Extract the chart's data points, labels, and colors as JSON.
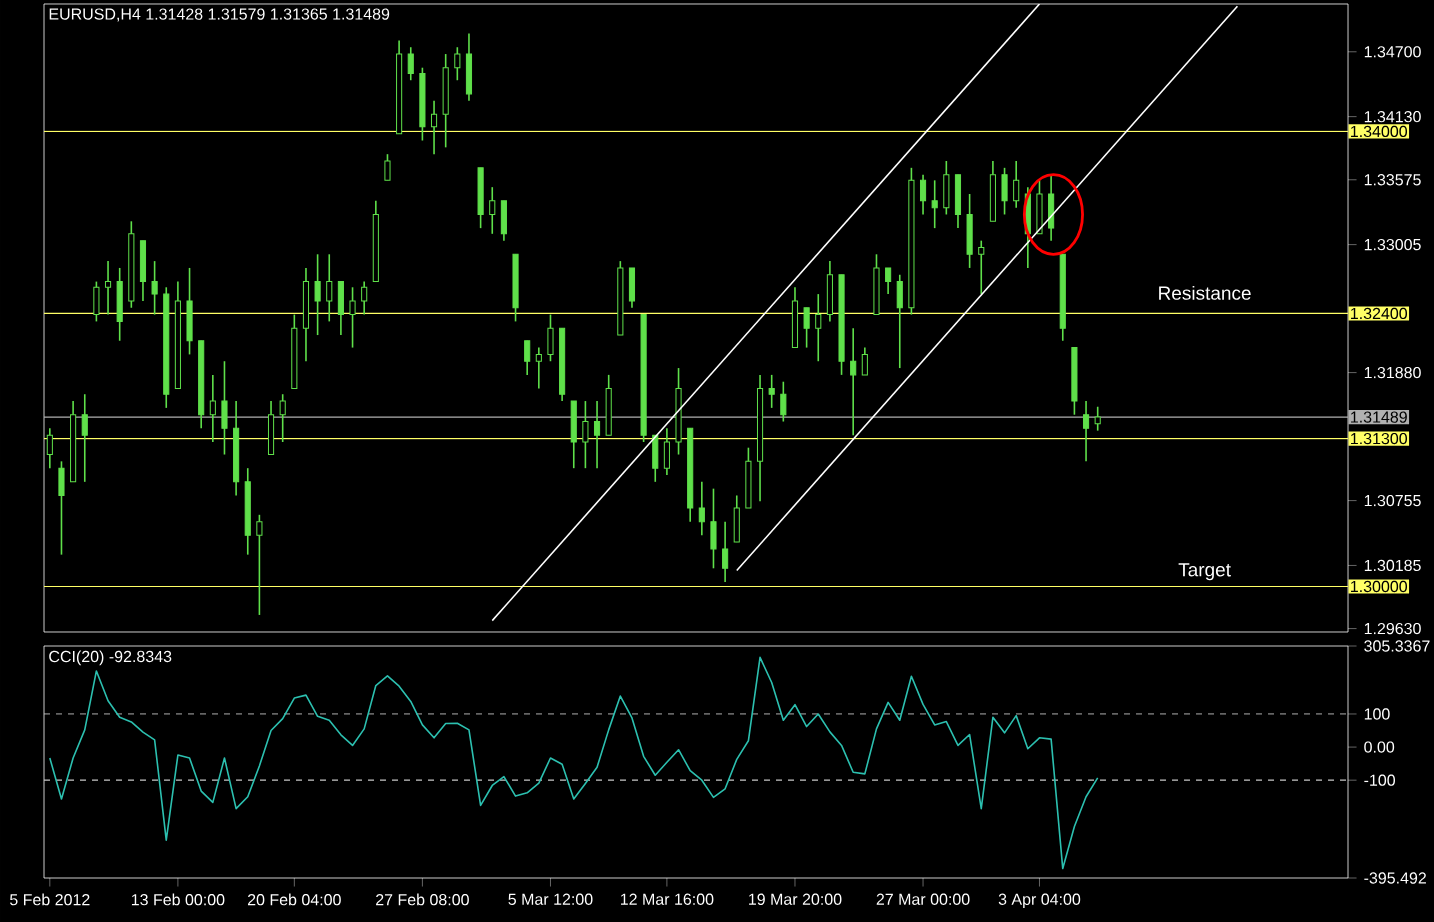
{
  "chart_data": [
    {
      "type": "candlestick",
      "title": "EURUSD,H4  1.31428 1.31579 1.31365 1.31489",
      "color": "#5fe04a",
      "categories": [
        null,
        null,
        null,
        null,
        null,
        null,
        null,
        null,
        null,
        null,
        null,
        null,
        null,
        null,
        null,
        null,
        null,
        null,
        null,
        null,
        null,
        null,
        null,
        null,
        null,
        null,
        null,
        null,
        null,
        null,
        null,
        null,
        null,
        null,
        null,
        null,
        null,
        null,
        null,
        null,
        null,
        null,
        null,
        null,
        null,
        null,
        null,
        null,
        null,
        null,
        null,
        null,
        null,
        null,
        null,
        null,
        null,
        null,
        null,
        null,
        null,
        null,
        null,
        null,
        null,
        null,
        null,
        null,
        null,
        null,
        null,
        null,
        null,
        null,
        null,
        null,
        null,
        null,
        null,
        null,
        null,
        null,
        null,
        null,
        null,
        null,
        null,
        null,
        null,
        null,
        null,
        null,
        null,
        null,
        null,
        null,
        null,
        null,
        null,
        null,
        null,
        null,
        null,
        null,
        null,
        null,
        null,
        null,
        null,
        null,
        null,
        null
      ],
      "ohlc": [
        [
          1.3116,
          1.3139,
          1.3104,
          1.3133
        ],
        [
          1.3104,
          1.311,
          1.3028,
          1.308
        ],
        [
          1.3092,
          1.3163,
          1.3092,
          1.3151
        ],
        [
          1.3151,
          1.3169,
          1.3092,
          1.3133
        ],
        [
          1.3239,
          1.3268,
          1.3233,
          1.3263
        ],
        [
          1.3263,
          1.3286,
          1.3239,
          1.3268
        ],
        [
          1.3268,
          1.328,
          1.3216,
          1.3233
        ],
        [
          1.3251,
          1.3321,
          1.3245,
          1.331
        ],
        [
          1.3304,
          1.3304,
          1.3251,
          1.3268
        ],
        [
          1.3268,
          1.3286,
          1.3239,
          1.3257
        ],
        [
          1.3257,
          1.3263,
          1.3157,
          1.3169
        ],
        [
          1.3174,
          1.3268,
          1.3174,
          1.3251
        ],
        [
          1.3251,
          1.328,
          1.3204,
          1.3216
        ],
        [
          1.3216,
          1.3216,
          1.3139,
          1.3151
        ],
        [
          1.3151,
          1.3186,
          1.3127,
          1.3163
        ],
        [
          1.3163,
          1.3198,
          1.3116,
          1.3139
        ],
        [
          1.3139,
          1.3163,
          1.308,
          1.3092
        ],
        [
          1.3092,
          1.3104,
          1.3028,
          1.3045
        ],
        [
          1.3045,
          1.3063,
          1.2975,
          1.3057
        ],
        [
          1.3116,
          1.3163,
          1.3116,
          1.3151
        ],
        [
          1.3151,
          1.3169,
          1.3127,
          1.3163
        ],
        [
          1.3174,
          1.3239,
          1.3174,
          1.3227
        ],
        [
          1.3227,
          1.328,
          1.3198,
          1.3268
        ],
        [
          1.3268,
          1.3292,
          1.3221,
          1.3251
        ],
        [
          1.3251,
          1.3292,
          1.3233,
          1.3268
        ],
        [
          1.3268,
          1.3268,
          1.3221,
          1.3239
        ],
        [
          1.3239,
          1.3263,
          1.321,
          1.3251
        ],
        [
          1.3251,
          1.3268,
          1.3239,
          1.3263
        ],
        [
          1.3268,
          1.3339,
          1.3268,
          1.3327
        ],
        [
          1.3357,
          1.338,
          1.3357,
          1.3374
        ],
        [
          1.3398,
          1.348,
          1.3398,
          1.3468
        ],
        [
          1.3468,
          1.3474,
          1.3445,
          1.3451
        ],
        [
          1.3451,
          1.3456,
          1.3392,
          1.3404
        ],
        [
          1.3404,
          1.3427,
          1.338,
          1.3415
        ],
        [
          1.3415,
          1.3468,
          1.3386,
          1.3456
        ],
        [
          1.3456,
          1.3474,
          1.3445,
          1.3468
        ],
        [
          1.3468,
          1.3486,
          1.3427,
          1.3433
        ],
        [
          1.3368,
          1.3368,
          1.3315,
          1.3327
        ],
        [
          1.3327,
          1.3351,
          1.331,
          1.3339
        ],
        [
          1.3339,
          1.3339,
          1.3304,
          1.331
        ],
        [
          1.3292,
          1.3292,
          1.3233,
          1.3245
        ],
        [
          1.3216,
          1.3216,
          1.3186,
          1.3198
        ],
        [
          1.3198,
          1.321,
          1.3174,
          1.3204
        ],
        [
          1.3204,
          1.3239,
          1.3198,
          1.3227
        ],
        [
          1.3227,
          1.3227,
          1.3163,
          1.3169
        ],
        [
          1.3163,
          1.3163,
          1.3104,
          1.3127
        ],
        [
          1.3127,
          1.3163,
          1.3104,
          1.3145
        ],
        [
          1.3145,
          1.3163,
          1.3104,
          1.3133
        ],
        [
          1.3133,
          1.3186,
          1.3133,
          1.3174
        ],
        [
          1.3221,
          1.3286,
          1.3221,
          1.328
        ],
        [
          1.328,
          1.328,
          1.3245,
          1.3251
        ],
        [
          1.3239,
          1.3239,
          1.3127,
          1.3133
        ],
        [
          1.3133,
          1.3133,
          1.3092,
          1.3104
        ],
        [
          1.3104,
          1.3139,
          1.3098,
          1.3127
        ],
        [
          1.3127,
          1.3192,
          1.3116,
          1.3174
        ],
        [
          1.3139,
          1.3139,
          1.3057,
          1.3069
        ],
        [
          1.3069,
          1.3092,
          1.3045,
          1.3057
        ],
        [
          1.3057,
          1.3086,
          1.3016,
          1.3033
        ],
        [
          1.3033,
          1.3057,
          1.3004,
          1.3016
        ],
        [
          1.3039,
          1.308,
          1.3039,
          1.3069
        ],
        [
          1.3069,
          1.3122,
          1.3069,
          1.311
        ],
        [
          1.311,
          1.3186,
          1.3075,
          1.3174
        ],
        [
          1.3174,
          1.3186,
          1.3157,
          1.3169
        ],
        [
          1.3169,
          1.318,
          1.3145,
          1.3151
        ],
        [
          1.321,
          1.3263,
          1.321,
          1.3251
        ],
        [
          1.3245,
          1.3245,
          1.321,
          1.3227
        ],
        [
          1.3227,
          1.3257,
          1.3198,
          1.3239
        ],
        [
          1.3239,
          1.3286,
          1.3233,
          1.3274
        ],
        [
          1.3274,
          1.3274,
          1.3186,
          1.3198
        ],
        [
          1.3198,
          1.3227,
          1.3133,
          1.3186
        ],
        [
          1.3186,
          1.321,
          1.3186,
          1.3204
        ],
        [
          1.3239,
          1.3292,
          1.3239,
          1.328
        ],
        [
          1.328,
          1.328,
          1.3257,
          1.3268
        ],
        [
          1.3268,
          1.3274,
          1.3192,
          1.3245
        ],
        [
          1.3245,
          1.3368,
          1.3239,
          1.3357
        ],
        [
          1.3357,
          1.3362,
          1.3327,
          1.3339
        ],
        [
          1.3339,
          1.3357,
          1.3315,
          1.3333
        ],
        [
          1.3333,
          1.3374,
          1.3327,
          1.3362
        ],
        [
          1.3362,
          1.3362,
          1.3315,
          1.3327
        ],
        [
          1.3327,
          1.3345,
          1.328,
          1.3292
        ],
        [
          1.3292,
          1.3304,
          1.3257,
          1.3298
        ],
        [
          1.3321,
          1.3374,
          1.3321,
          1.3362
        ],
        [
          1.3362,
          1.3368,
          1.3327,
          1.3339
        ],
        [
          1.3339,
          1.3374,
          1.3333,
          1.3357
        ],
        [
          1.3345,
          1.3351,
          1.328,
          1.331
        ],
        [
          1.331,
          1.3357,
          1.331,
          1.3345
        ],
        [
          1.3345,
          1.3362,
          1.3304,
          1.3315
        ],
        [
          1.3292,
          1.3292,
          1.3216,
          1.3227
        ],
        [
          1.321,
          1.321,
          1.3151,
          1.3163
        ],
        [
          1.3151,
          1.3163,
          1.311,
          1.3139
        ],
        [
          1.3143,
          1.3158,
          1.3137,
          1.3149
        ],
        null,
        null,
        null,
        null,
        null,
        null,
        null,
        null,
        null,
        null,
        null,
        null,
        null,
        null,
        null,
        null,
        null,
        null,
        null,
        null,
        null
      ],
      "series": [
        {
          "type": "line",
          "color": "#ffffff",
          "values": [
            null,
            null,
            null,
            null,
            null,
            null,
            null,
            null,
            null,
            null,
            null,
            null,
            null,
            null,
            null,
            null,
            null,
            null,
            null,
            null,
            null,
            null,
            null,
            null,
            null,
            null,
            null,
            null,
            null,
            null,
            null,
            null,
            null,
            null,
            null,
            null,
            null,
            null,
            1.297,
            null,
            null,
            null,
            null,
            null,
            null,
            null,
            null,
            null,
            null,
            null,
            null,
            null,
            null,
            null,
            null,
            null,
            null,
            null,
            null,
            null,
            null,
            null,
            null,
            null,
            null,
            null,
            null,
            null,
            null,
            null,
            null,
            null,
            null,
            null,
            null,
            null,
            null,
            null,
            null,
            null,
            null,
            null,
            null,
            null,
            null,
            1.3512,
            null,
            null,
            null,
            null,
            null,
            null,
            null,
            null,
            null,
            null,
            null,
            null,
            null,
            null,
            null,
            null,
            null,
            null,
            null,
            null,
            null,
            null,
            null,
            null,
            null,
            null
          ]
        },
        {
          "type": "line",
          "color": "#ffffff",
          "values": [
            null,
            null,
            null,
            null,
            null,
            null,
            null,
            null,
            null,
            null,
            null,
            null,
            null,
            null,
            null,
            null,
            null,
            null,
            null,
            null,
            null,
            null,
            null,
            null,
            null,
            null,
            null,
            null,
            null,
            null,
            null,
            null,
            null,
            null,
            null,
            null,
            null,
            null,
            null,
            null,
            null,
            null,
            null,
            null,
            null,
            null,
            null,
            null,
            null,
            null,
            null,
            null,
            null,
            null,
            null,
            null,
            null,
            null,
            null,
            1.3014,
            null,
            null,
            null,
            null,
            null,
            null,
            null,
            null,
            null,
            null,
            null,
            null,
            null,
            null,
            null,
            null,
            null,
            null,
            null,
            null,
            null,
            null,
            null,
            null,
            null,
            null,
            null,
            null,
            null,
            null,
            null,
            null,
            null,
            null,
            null,
            null,
            null,
            null,
            null,
            null,
            null,
            null,
            1.351,
            null,
            null,
            null,
            null,
            null,
            null,
            null,
            null,
            null
          ]
        }
      ],
      "ylim": [
        1.296,
        1.3512
      ],
      "yticks": [
        {
          "value": 1.347,
          "label": "1.34700"
        },
        {
          "value": 1.3413,
          "label": "1.34130"
        },
        {
          "value": 1.33575,
          "label": "1.33575"
        },
        {
          "value": 1.33005,
          "label": "1.33005"
        },
        {
          "value": 1.3188,
          "label": "1.31880"
        },
        {
          "value": 1.30755,
          "label": "1.30755"
        },
        {
          "value": 1.30185,
          "label": "1.30185"
        },
        {
          "value": 1.2963,
          "label": "1.29630"
        }
      ],
      "tick_labels": "y",
      "ref_lines": [
        {
          "axis": "y",
          "value": 1.34,
          "label": "1.34000",
          "color": "#ffff66"
        },
        {
          "axis": "y",
          "value": 1.324,
          "label": "1.32400",
          "color": "#ffff66"
        },
        {
          "axis": "y",
          "value": 1.31489,
          "label": "1.31489",
          "color": "#b0b0b0"
        },
        {
          "axis": "y",
          "value": 1.313,
          "label": "1.31300",
          "color": "#ffff66"
        },
        {
          "axis": "y",
          "value": 1.3,
          "label": "1.30000",
          "color": "#ffff66"
        }
      ],
      "annotations": [
        "Resistance",
        "Target"
      ]
    },
    {
      "type": "line",
      "title": "CCI(20) -92.8343",
      "color": "#2cc0b0",
      "categories": [
        "5 Feb 2012",
        null,
        null,
        null,
        null,
        null,
        null,
        null,
        null,
        null,
        null,
        "13 Feb 00:00",
        null,
        null,
        null,
        null,
        null,
        null,
        null,
        null,
        null,
        "20 Feb 04:00",
        null,
        null,
        null,
        null,
        null,
        null,
        null,
        null,
        null,
        null,
        "27 Feb 08:00",
        null,
        null,
        null,
        null,
        null,
        null,
        null,
        null,
        null,
        null,
        "5 Mar 12:00",
        null,
        null,
        null,
        null,
        null,
        null,
        null,
        null,
        null,
        "12 Mar 16:00",
        null,
        null,
        null,
        null,
        null,
        null,
        null,
        null,
        null,
        null,
        "19 Mar 20:00",
        null,
        null,
        null,
        null,
        null,
        null,
        null,
        null,
        null,
        null,
        "27 Mar 00:00",
        null,
        null,
        null,
        null,
        null,
        null,
        null,
        null,
        null,
        "3 Apr 04:00",
        null,
        null,
        null,
        null,
        null,
        null,
        null,
        null,
        null,
        null,
        null,
        null,
        null,
        null,
        null,
        null,
        null,
        null,
        null,
        null,
        null,
        null,
        null,
        null,
        null,
        null
      ],
      "values": [
        -33,
        -157,
        -33,
        52,
        230,
        140,
        90,
        76,
        45,
        22,
        -281,
        -24,
        -33,
        -133,
        -167,
        -33,
        -186,
        -150,
        -57,
        50,
        86,
        148,
        157,
        93,
        81,
        37,
        5,
        55,
        186,
        215,
        184,
        138,
        67,
        28,
        71,
        72,
        52,
        -176,
        -116,
        -89,
        -148,
        -138,
        -109,
        -33,
        -52,
        -157,
        -110,
        -61,
        52,
        154,
        88,
        -28,
        -85,
        -46,
        -8,
        -71,
        -100,
        -152,
        -126,
        -37,
        19,
        271,
        195,
        81,
        128,
        62,
        100,
        46,
        5,
        -76,
        -81,
        55,
        135,
        81,
        214,
        129,
        67,
        77,
        5,
        38,
        -186,
        90,
        43,
        95,
        -5,
        28,
        24,
        -367,
        -240,
        -150,
        -93,
        null,
        null,
        null,
        null,
        null,
        null,
        null,
        null,
        null,
        null,
        null,
        null,
        null,
        null,
        null,
        null,
        null,
        null,
        null,
        null,
        null
      ],
      "ylim": [
        -395.492,
        305.3367
      ],
      "yticks": [
        {
          "value": 305.3367,
          "label": "305.3367"
        },
        100,
        {
          "value": 0,
          "label": "0.00"
        },
        -100,
        {
          "value": -395.492,
          "label": "-395.492"
        }
      ],
      "ref_lines": [
        {
          "axis": "y",
          "value": 100,
          "color": "#c8c8c8",
          "line_style": "dashed"
        },
        {
          "axis": "y",
          "value": -100,
          "color": "#c8c8c8",
          "line_style": "dashed"
        }
      ]
    }
  ]
}
